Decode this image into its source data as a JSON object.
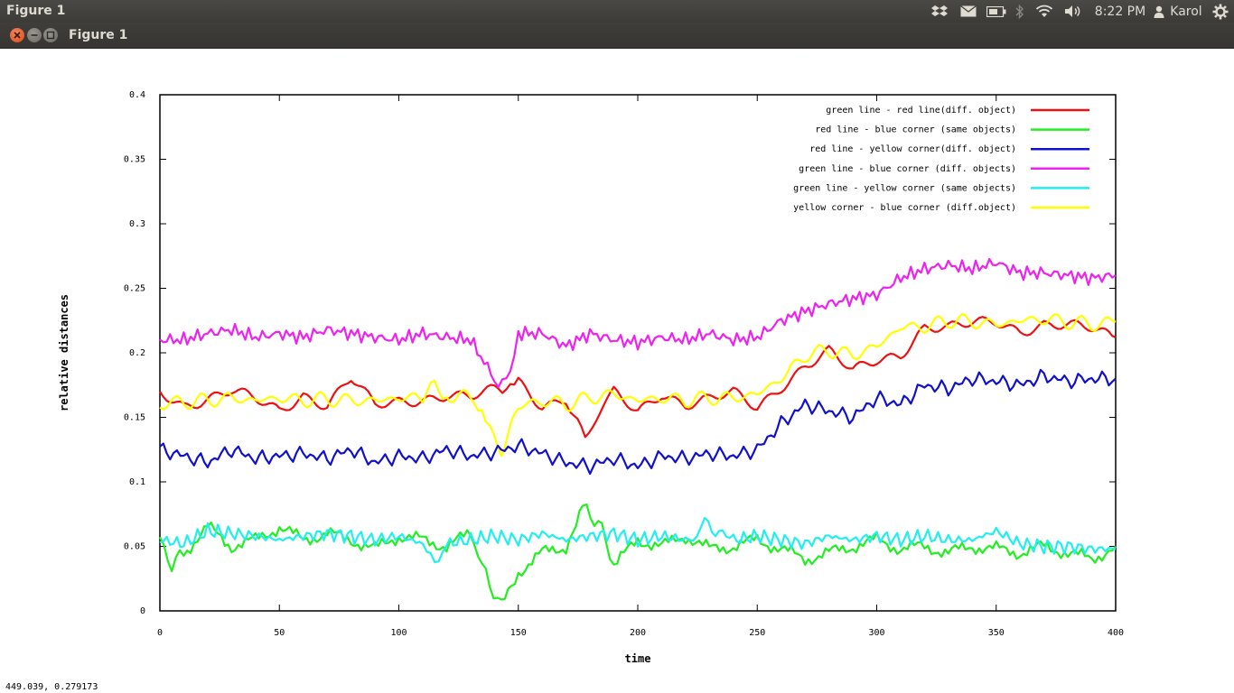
{
  "top_panel": {
    "app_title": "Figure 1",
    "time": "8:22 PM",
    "user": "Karol",
    "icons": [
      "dropbox-icon",
      "mail-icon",
      "battery-icon",
      "bluetooth-icon",
      "wifi-icon",
      "volume-icon",
      "user-icon",
      "gear-icon"
    ]
  },
  "window": {
    "title": "Figure 1",
    "buttons": {
      "close_color": "#e65a2a",
      "minimize_color": "#807e77",
      "maximize_color": "#807e77"
    }
  },
  "status_bar": {
    "coordinates": "449.039,  0.279173"
  },
  "chart_data": {
    "type": "line",
    "xlabel": "time",
    "ylabel": "relative distances",
    "xlim": [
      0,
      400
    ],
    "ylim": [
      0,
      0.4
    ],
    "xticks": [
      "0",
      "50",
      "100",
      "150",
      "200",
      "250",
      "300",
      "350",
      "400"
    ],
    "yticks": [
      "0",
      "0.05",
      "0.1",
      "0.15",
      "0.2",
      "0.25",
      "0.3",
      "0.35",
      "0.4"
    ],
    "legend_position": "top-right",
    "grid": false,
    "series": [
      {
        "name": "green line - red line(diff. object)",
        "color": "#ee1111",
        "x": [
          0,
          10,
          20,
          30,
          40,
          50,
          60,
          70,
          80,
          90,
          100,
          110,
          120,
          130,
          140,
          145,
          150,
          160,
          170,
          178,
          190,
          200,
          210,
          220,
          230,
          240,
          250,
          260,
          270,
          280,
          290,
          300,
          310,
          320,
          330,
          340,
          350,
          360,
          370,
          380,
          390,
          400
        ],
        "y": [
          0.17,
          0.16,
          0.165,
          0.17,
          0.163,
          0.155,
          0.168,
          0.16,
          0.18,
          0.158,
          0.162,
          0.165,
          0.168,
          0.165,
          0.17,
          0.167,
          0.178,
          0.16,
          0.165,
          0.14,
          0.168,
          0.155,
          0.17,
          0.16,
          0.163,
          0.168,
          0.158,
          0.175,
          0.19,
          0.2,
          0.185,
          0.195,
          0.2,
          0.22,
          0.218,
          0.222,
          0.225,
          0.218,
          0.222,
          0.22,
          0.218,
          0.212
        ]
      },
      {
        "name": "red line - blue corner (same objects)",
        "color": "#22ee22",
        "x": [
          0,
          5,
          10,
          20,
          30,
          40,
          50,
          60,
          70,
          80,
          90,
          100,
          110,
          120,
          130,
          138,
          143,
          150,
          160,
          170,
          177,
          185,
          190,
          200,
          210,
          220,
          230,
          240,
          250,
          260,
          270,
          280,
          290,
          300,
          310,
          320,
          330,
          340,
          350,
          360,
          370,
          380,
          390,
          400
        ],
        "y": [
          0.055,
          0.035,
          0.045,
          0.065,
          0.05,
          0.055,
          0.065,
          0.055,
          0.06,
          0.055,
          0.048,
          0.058,
          0.055,
          0.05,
          0.06,
          0.02,
          0.005,
          0.03,
          0.045,
          0.05,
          0.08,
          0.065,
          0.035,
          0.055,
          0.05,
          0.058,
          0.048,
          0.05,
          0.055,
          0.048,
          0.04,
          0.045,
          0.05,
          0.055,
          0.048,
          0.05,
          0.045,
          0.05,
          0.048,
          0.045,
          0.05,
          0.045,
          0.04,
          0.05
        ]
      },
      {
        "name": "red line - yellow corner(diff. object)",
        "color": "#1111cc",
        "x": [
          0,
          10,
          20,
          30,
          40,
          50,
          60,
          70,
          80,
          90,
          100,
          110,
          120,
          130,
          140,
          150,
          160,
          170,
          180,
          190,
          200,
          210,
          220,
          230,
          240,
          250,
          260,
          270,
          280,
          290,
          300,
          310,
          320,
          330,
          340,
          350,
          360,
          370,
          380,
          390,
          400
        ],
        "y": [
          0.125,
          0.12,
          0.115,
          0.125,
          0.118,
          0.12,
          0.122,
          0.118,
          0.125,
          0.115,
          0.12,
          0.118,
          0.125,
          0.12,
          0.123,
          0.128,
          0.122,
          0.115,
          0.112,
          0.118,
          0.112,
          0.12,
          0.118,
          0.122,
          0.12,
          0.125,
          0.145,
          0.16,
          0.155,
          0.15,
          0.165,
          0.16,
          0.175,
          0.172,
          0.18,
          0.178,
          0.175,
          0.182,
          0.178,
          0.18,
          0.18
        ]
      },
      {
        "name": "green line - blue corner (diff. objects)",
        "color": "#ee22ee",
        "x": [
          0,
          10,
          20,
          30,
          40,
          50,
          60,
          70,
          80,
          90,
          100,
          110,
          120,
          130,
          140,
          145,
          150,
          160,
          170,
          180,
          190,
          200,
          210,
          220,
          230,
          240,
          250,
          260,
          270,
          280,
          290,
          300,
          310,
          320,
          330,
          340,
          350,
          360,
          370,
          380,
          390,
          400
        ],
        "y": [
          0.21,
          0.21,
          0.215,
          0.218,
          0.212,
          0.215,
          0.212,
          0.218,
          0.215,
          0.212,
          0.21,
          0.215,
          0.212,
          0.21,
          0.18,
          0.175,
          0.215,
          0.215,
          0.205,
          0.215,
          0.21,
          0.208,
          0.212,
          0.21,
          0.215,
          0.21,
          0.212,
          0.225,
          0.232,
          0.238,
          0.242,
          0.245,
          0.258,
          0.265,
          0.268,
          0.265,
          0.27,
          0.262,
          0.262,
          0.26,
          0.258,
          0.26
        ]
      },
      {
        "name": "green line - yellow corner (same objects)",
        "color": "#22eeee",
        "x": [
          0,
          10,
          20,
          30,
          40,
          50,
          60,
          70,
          80,
          90,
          100,
          110,
          115,
          120,
          130,
          140,
          150,
          160,
          170,
          180,
          190,
          200,
          210,
          220,
          228,
          240,
          250,
          260,
          270,
          280,
          290,
          300,
          310,
          320,
          330,
          340,
          350,
          360,
          370,
          380,
          390,
          400
        ],
        "y": [
          0.055,
          0.052,
          0.062,
          0.06,
          0.058,
          0.055,
          0.058,
          0.06,
          0.058,
          0.055,
          0.058,
          0.052,
          0.04,
          0.052,
          0.055,
          0.058,
          0.055,
          0.06,
          0.055,
          0.058,
          0.06,
          0.055,
          0.058,
          0.055,
          0.068,
          0.055,
          0.058,
          0.055,
          0.052,
          0.058,
          0.055,
          0.058,
          0.055,
          0.058,
          0.055,
          0.055,
          0.062,
          0.052,
          0.05,
          0.05,
          0.048,
          0.048
        ]
      },
      {
        "name": "yellow corner - blue corner (diff.object)",
        "color": "#ffff00",
        "x": [
          0,
          10,
          20,
          30,
          40,
          50,
          60,
          70,
          80,
          90,
          100,
          110,
          115,
          120,
          130,
          138,
          143,
          150,
          160,
          170,
          180,
          190,
          200,
          210,
          220,
          230,
          240,
          250,
          260,
          270,
          280,
          290,
          300,
          310,
          320,
          330,
          340,
          350,
          360,
          370,
          380,
          390,
          400
        ],
        "y": [
          0.16,
          0.162,
          0.163,
          0.165,
          0.163,
          0.165,
          0.163,
          0.164,
          0.163,
          0.163,
          0.165,
          0.165,
          0.175,
          0.168,
          0.165,
          0.14,
          0.125,
          0.158,
          0.163,
          0.16,
          0.165,
          0.168,
          0.163,
          0.165,
          0.163,
          0.165,
          0.165,
          0.168,
          0.18,
          0.198,
          0.202,
          0.198,
          0.205,
          0.22,
          0.22,
          0.225,
          0.224,
          0.222,
          0.225,
          0.226,
          0.224,
          0.222,
          0.224
        ]
      }
    ]
  }
}
